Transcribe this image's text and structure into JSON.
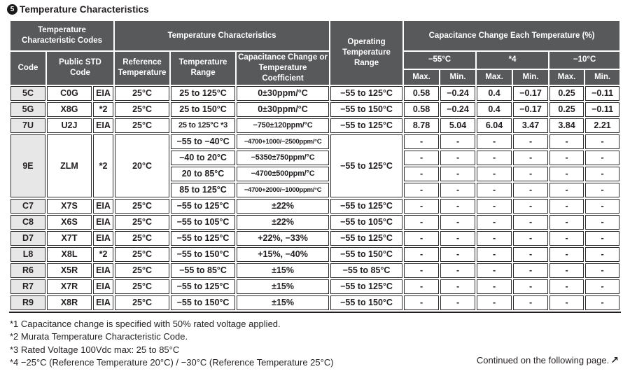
{
  "page": {
    "section_number": "5",
    "title": "Temperature Characteristics"
  },
  "colors": {
    "header_bg": "#58595B",
    "header_text": "#FFFFFF",
    "code_column_bg": "#E7E7E8",
    "border": "#231F20",
    "text": "#231F20"
  },
  "table": {
    "headers": {
      "temp_char_codes": "Temperature Characteristic Codes",
      "temp_characteristics": "Temperature Characteristics",
      "operating_temp_range": "Operating Temperature Range",
      "cap_change_each_temp": "Capacitance Change Each Temperature (%)",
      "code": "Code",
      "public_std_code": "Public STD Code",
      "reference_temperature": "Reference Temperature",
      "temperature_range": "Temperature Range",
      "cap_change_or_coeff": "Capacitance Change or Temperature Coefficient",
      "temp_minus55": "−55°C",
      "temp_star4": "*4",
      "temp_minus10": "−10°C",
      "max": "Max.",
      "min": "Min."
    },
    "body_rows": [
      {
        "cells": [
          {
            "t": "5C",
            "cls": "code"
          },
          {
            "t": "C0G"
          },
          {
            "t": "EIA"
          },
          {
            "t": "25°C"
          },
          {
            "t": "25 to 125°C"
          },
          {
            "t": "0±30ppm/°C"
          },
          {
            "t": "−55 to 125°C"
          },
          {
            "t": "0.58"
          },
          {
            "t": "−0.24"
          },
          {
            "t": "0.4"
          },
          {
            "t": "−0.17"
          },
          {
            "t": "0.25"
          },
          {
            "t": "−0.11"
          }
        ]
      },
      {
        "cells": [
          {
            "t": "5G",
            "cls": "code"
          },
          {
            "t": "X8G"
          },
          {
            "t": "*2"
          },
          {
            "t": "25°C"
          },
          {
            "t": "25 to 150°C"
          },
          {
            "t": "0±30ppm/°C"
          },
          {
            "t": "−55 to 150°C"
          },
          {
            "t": "0.58"
          },
          {
            "t": "−0.24"
          },
          {
            "t": "0.4"
          },
          {
            "t": "−0.17"
          },
          {
            "t": "0.25"
          },
          {
            "t": "−0.11"
          }
        ]
      },
      {
        "cells": [
          {
            "t": "7U",
            "cls": "code"
          },
          {
            "t": "U2J"
          },
          {
            "t": "EIA"
          },
          {
            "t": "25°C"
          },
          {
            "t": "25 to 125°C *3"
          },
          {
            "t": "−750±120ppm/°C"
          },
          {
            "t": "−55 to 125°C"
          },
          {
            "t": "8.78"
          },
          {
            "t": "5.04"
          },
          {
            "t": "6.04"
          },
          {
            "t": "3.47"
          },
          {
            "t": "3.84"
          },
          {
            "t": "2.21"
          }
        ]
      },
      {
        "cells": [
          {
            "t": "9E",
            "cls": "code",
            "rs": 4
          },
          {
            "t": "ZLM",
            "rs": 4
          },
          {
            "t": "*2",
            "rs": 4
          },
          {
            "t": "20°C",
            "rs": 4
          },
          {
            "t": "−55 to −40°C"
          },
          {
            "t": "−4700+1000/−2500ppm/°C"
          },
          {
            "t": "−55 to 125°C",
            "rs": 4
          },
          {
            "t": "-"
          },
          {
            "t": "-"
          },
          {
            "t": "-"
          },
          {
            "t": "-"
          },
          {
            "t": "-"
          },
          {
            "t": "-"
          }
        ]
      },
      {
        "cells": [
          {
            "t": "−40 to 20°C"
          },
          {
            "t": "−5350±750ppm/°C"
          },
          {
            "t": "-"
          },
          {
            "t": "-"
          },
          {
            "t": "-"
          },
          {
            "t": "-"
          },
          {
            "t": "-"
          },
          {
            "t": "-"
          }
        ]
      },
      {
        "cells": [
          {
            "t": "20 to 85°C"
          },
          {
            "t": "−4700±500ppm/°C"
          },
          {
            "t": "-"
          },
          {
            "t": "-"
          },
          {
            "t": "-"
          },
          {
            "t": "-"
          },
          {
            "t": "-"
          },
          {
            "t": "-"
          }
        ]
      },
      {
        "cells": [
          {
            "t": "85 to 125°C"
          },
          {
            "t": "−4700+2000/−1000ppm/°C"
          },
          {
            "t": "-"
          },
          {
            "t": "-"
          },
          {
            "t": "-"
          },
          {
            "t": "-"
          },
          {
            "t": "-"
          },
          {
            "t": "-"
          }
        ]
      },
      {
        "cells": [
          {
            "t": "C7",
            "cls": "code"
          },
          {
            "t": "X7S"
          },
          {
            "t": "EIA"
          },
          {
            "t": "25°C"
          },
          {
            "t": "−55 to 125°C"
          },
          {
            "t": "±22%"
          },
          {
            "t": "−55 to 125°C"
          },
          {
            "t": "-"
          },
          {
            "t": "-"
          },
          {
            "t": "-"
          },
          {
            "t": "-"
          },
          {
            "t": "-"
          },
          {
            "t": "-"
          }
        ]
      },
      {
        "cells": [
          {
            "t": "C8",
            "cls": "code"
          },
          {
            "t": "X6S"
          },
          {
            "t": "EIA"
          },
          {
            "t": "25°C"
          },
          {
            "t": "−55 to 105°C"
          },
          {
            "t": "±22%"
          },
          {
            "t": "−55 to 105°C"
          },
          {
            "t": "-"
          },
          {
            "t": "-"
          },
          {
            "t": "-"
          },
          {
            "t": "-"
          },
          {
            "t": "-"
          },
          {
            "t": "-"
          }
        ]
      },
      {
        "cells": [
          {
            "t": "D7",
            "cls": "code"
          },
          {
            "t": "X7T"
          },
          {
            "t": "EIA"
          },
          {
            "t": "25°C"
          },
          {
            "t": "−55 to 125°C"
          },
          {
            "t": "+22%, −33%"
          },
          {
            "t": "−55 to 125°C"
          },
          {
            "t": "-"
          },
          {
            "t": "-"
          },
          {
            "t": "-"
          },
          {
            "t": "-"
          },
          {
            "t": "-"
          },
          {
            "t": "-"
          }
        ]
      },
      {
        "cells": [
          {
            "t": "L8",
            "cls": "code"
          },
          {
            "t": "X8L"
          },
          {
            "t": "*2"
          },
          {
            "t": "25°C"
          },
          {
            "t": "−55 to 150°C"
          },
          {
            "t": "+15%, −40%"
          },
          {
            "t": "−55 to 150°C"
          },
          {
            "t": "-"
          },
          {
            "t": "-"
          },
          {
            "t": "-"
          },
          {
            "t": "-"
          },
          {
            "t": "-"
          },
          {
            "t": "-"
          }
        ]
      },
      {
        "cells": [
          {
            "t": "R6",
            "cls": "code"
          },
          {
            "t": "X5R"
          },
          {
            "t": "EIA"
          },
          {
            "t": "25°C"
          },
          {
            "t": "−55 to 85°C"
          },
          {
            "t": "±15%"
          },
          {
            "t": "−55 to 85°C"
          },
          {
            "t": "-"
          },
          {
            "t": "-"
          },
          {
            "t": "-"
          },
          {
            "t": "-"
          },
          {
            "t": "-"
          },
          {
            "t": "-"
          }
        ]
      },
      {
        "cells": [
          {
            "t": "R7",
            "cls": "code"
          },
          {
            "t": "X7R"
          },
          {
            "t": "EIA"
          },
          {
            "t": "25°C"
          },
          {
            "t": "−55 to 125°C"
          },
          {
            "t": "±15%"
          },
          {
            "t": "−55 to 125°C"
          },
          {
            "t": "-"
          },
          {
            "t": "-"
          },
          {
            "t": "-"
          },
          {
            "t": "-"
          },
          {
            "t": "-"
          },
          {
            "t": "-"
          }
        ]
      },
      {
        "cells": [
          {
            "t": "R9",
            "cls": "code"
          },
          {
            "t": "X8R"
          },
          {
            "t": "EIA"
          },
          {
            "t": "25°C"
          },
          {
            "t": "−55 to 150°C"
          },
          {
            "t": "±15%"
          },
          {
            "t": "−55 to 150°C"
          },
          {
            "t": "-"
          },
          {
            "t": "-"
          },
          {
            "t": "-"
          },
          {
            "t": "-"
          },
          {
            "t": "-"
          },
          {
            "t": "-"
          }
        ]
      }
    ]
  },
  "footnotes": [
    "*1 Capacitance change is specified with 50% rated voltage applied.",
    "*2 Murata Temperature Characteristic Code.",
    "*3 Rated Voltage 100Vdc max: 25 to 85°C",
    "*4 −25°C (Reference Temperature 20°C) / −30°C (Reference Temperature 25°C)"
  ],
  "continued": {
    "text": "Continued on the following page.",
    "arrow": "↗"
  }
}
